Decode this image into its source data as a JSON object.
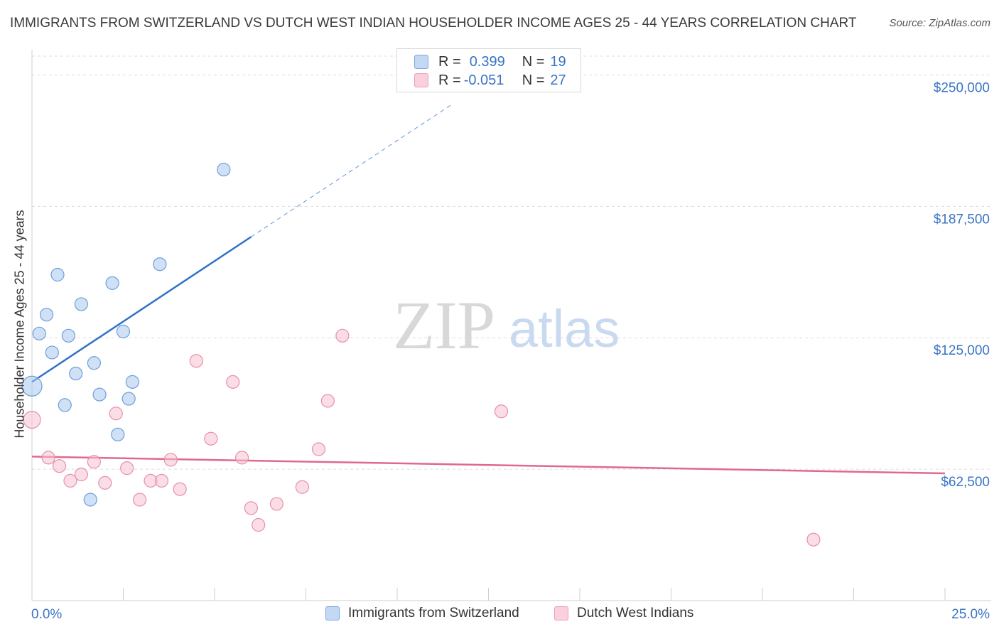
{
  "title": "IMMIGRANTS FROM SWITZERLAND VS DUTCH WEST INDIAN HOUSEHOLDER INCOME AGES 25 - 44 YEARS CORRELATION CHART",
  "source": "Source: ZipAtlas.com",
  "watermark": {
    "zip": "ZIP",
    "atlas": "atlas"
  },
  "legend_stats": [
    {
      "r_label": "R =",
      "r_value": "0.399",
      "n_label": "N =",
      "n_value": "19"
    },
    {
      "r_label": "R =",
      "r_value": "-0.051",
      "n_label": "N =",
      "n_value": "27"
    }
  ],
  "chart_data": {
    "type": "scatter",
    "title": "IMMIGRANTS FROM SWITZERLAND VS DUTCH WEST INDIAN HOUSEHOLDER INCOME AGES 25 - 44 YEARS CORRELATION CHART",
    "xlabel": "",
    "ylabel": "Householder Income Ages 25 - 44 years",
    "xlim": [
      0,
      25
    ],
    "ylim": [
      0,
      262000
    ],
    "x_tick_labels": [
      "0.0%",
      "25.0%"
    ],
    "y_ticks": [
      62500,
      125000,
      187500,
      250000
    ],
    "y_tick_labels": [
      "$62,500",
      "$125,000",
      "$187,500",
      "$250,000"
    ],
    "grid": true,
    "legend_position": "bottom",
    "series": [
      {
        "name": "Immigrants from Switzerland",
        "color": "#a9c8ee",
        "stroke": "#6b9fdb",
        "line_color": "#2f72c8",
        "R": 0.399,
        "N": 19,
        "points": [
          [
            0.0,
            102000,
            14
          ],
          [
            0.2,
            127000,
            9
          ],
          [
            0.4,
            136000,
            9
          ],
          [
            0.55,
            118000,
            9
          ],
          [
            0.7,
            155000,
            9
          ],
          [
            0.9,
            93000,
            9
          ],
          [
            1.0,
            126000,
            9
          ],
          [
            1.2,
            108000,
            9
          ],
          [
            1.35,
            141000,
            9
          ],
          [
            1.6,
            48000,
            9
          ],
          [
            1.7,
            113000,
            9
          ],
          [
            1.85,
            98000,
            9
          ],
          [
            2.2,
            151000,
            9
          ],
          [
            2.35,
            79000,
            9
          ],
          [
            2.5,
            128000,
            9
          ],
          [
            2.65,
            96000,
            9
          ],
          [
            2.75,
            104000,
            9
          ],
          [
            3.5,
            160000,
            9
          ],
          [
            5.25,
            205000,
            9
          ]
        ],
        "trend": {
          "x": [
            0.0,
            6.0
          ],
          "y": [
            104000,
            173000
          ]
        },
        "trend_dashed": {
          "x": [
            6.0,
            11.5
          ],
          "y": [
            173000,
            236000
          ]
        }
      },
      {
        "name": "Dutch West Indians",
        "color": "#f6c1d0",
        "stroke": "#e690aa",
        "line_color": "#e0688f",
        "R": -0.051,
        "N": 27,
        "points": [
          [
            0.0,
            86000,
            12
          ],
          [
            0.45,
            68000,
            9
          ],
          [
            0.75,
            64000,
            9
          ],
          [
            1.05,
            57000,
            9
          ],
          [
            1.35,
            60000,
            9
          ],
          [
            1.7,
            66000,
            9
          ],
          [
            2.0,
            56000,
            9
          ],
          [
            2.3,
            89000,
            9
          ],
          [
            2.6,
            63000,
            9
          ],
          [
            2.95,
            48000,
            9
          ],
          [
            3.25,
            57000,
            9
          ],
          [
            3.55,
            57000,
            9
          ],
          [
            3.8,
            67000,
            9
          ],
          [
            4.05,
            53000,
            9
          ],
          [
            4.5,
            114000,
            9
          ],
          [
            4.9,
            77000,
            9
          ],
          [
            5.5,
            104000,
            9
          ],
          [
            5.75,
            68000,
            9
          ],
          [
            6.0,
            44000,
            9
          ],
          [
            6.2,
            36000,
            9
          ],
          [
            6.7,
            46000,
            9
          ],
          [
            7.4,
            54000,
            9
          ],
          [
            7.85,
            72000,
            9
          ],
          [
            8.1,
            95000,
            9
          ],
          [
            8.5,
            126000,
            9
          ],
          [
            12.85,
            90000,
            9
          ],
          [
            21.4,
            29000,
            9
          ]
        ],
        "trend": {
          "x": [
            0.0,
            25.0
          ],
          "y": [
            68500,
            60500
          ]
        }
      }
    ]
  }
}
